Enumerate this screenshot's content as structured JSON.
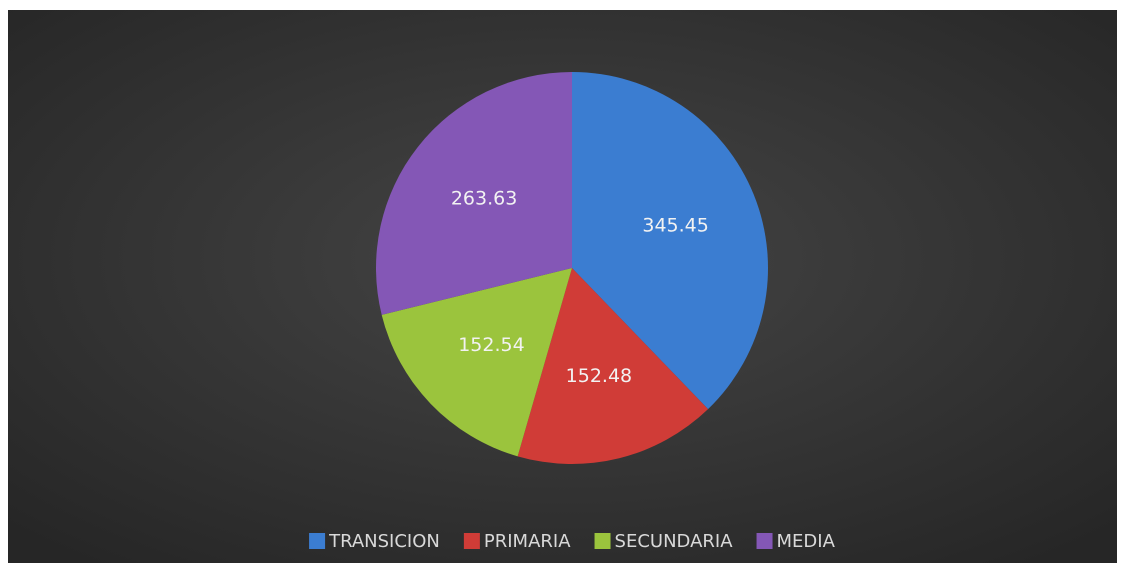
{
  "chart_data": {
    "type": "pie",
    "categories": [
      "TRANSICION",
      "PRIMARIA",
      "SECUNDARIA",
      "MEDIA"
    ],
    "values": [
      345.45,
      152.48,
      152.54,
      263.63
    ],
    "colors": [
      "#3b7dd1",
      "#d03c37",
      "#9bc43d",
      "#8457b6"
    ],
    "legend": "bottom"
  }
}
